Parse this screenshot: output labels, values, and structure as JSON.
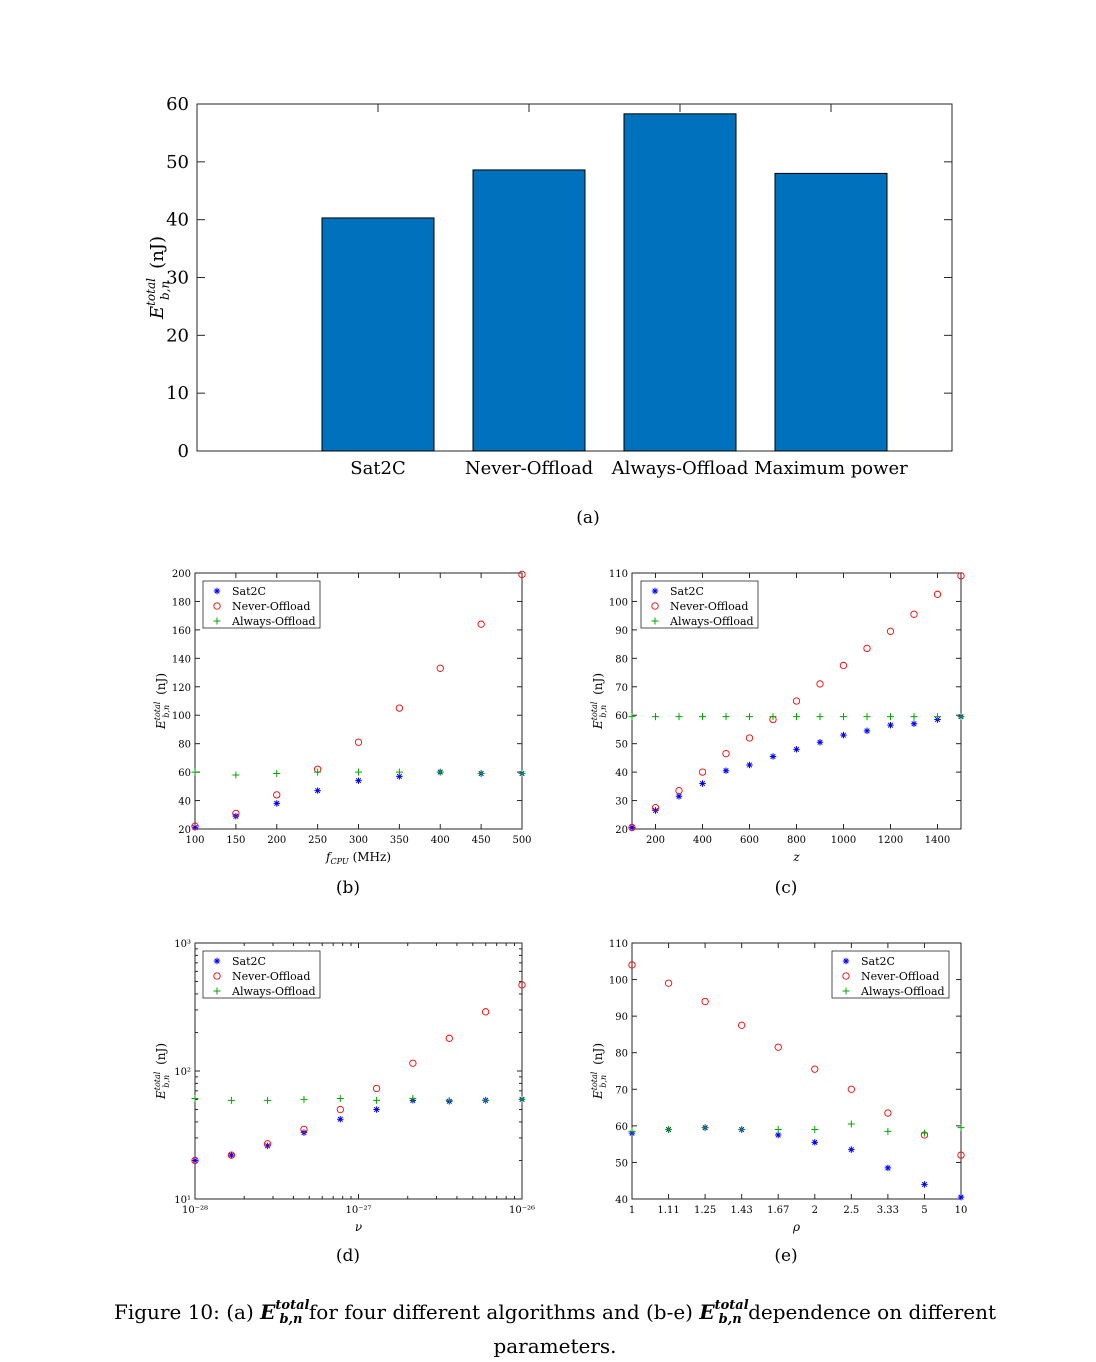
{
  "chart_data": [
    {
      "id": "a",
      "type": "bar",
      "categories": [
        "Sat2C",
        "Never-Offload",
        "Always-Offload",
        "Maximum power"
      ],
      "values": [
        40.3,
        48.6,
        58.3,
        48.0
      ],
      "ylabel_main": "E",
      "ylabel_sub": "b,n",
      "ylabel_sup": "total",
      "ylabel_unit": "(nJ)",
      "ylim": [
        0,
        60
      ],
      "yticks": [
        0,
        10,
        20,
        30,
        40,
        50,
        60
      ],
      "color": "#0072BD",
      "sublabel": "(a)"
    },
    {
      "id": "b",
      "type": "scatter",
      "xlabel_main": "f",
      "xlabel_sub": "CPU",
      "xlabel_unit": "(MHz)",
      "ylabel_main": "E",
      "ylabel_sub": "b,n",
      "ylabel_sup": "total",
      "ylabel_unit": "(nJ)",
      "xscale": "linear",
      "yscale": "linear",
      "xlim": [
        100,
        500
      ],
      "ylim": [
        20,
        200
      ],
      "xticks": [
        100,
        150,
        200,
        250,
        300,
        350,
        400,
        450,
        500
      ],
      "xticklabels": [
        "100",
        "150",
        "200",
        "250",
        "300",
        "350",
        "400",
        "450",
        "500"
      ],
      "yticks": [
        20,
        40,
        60,
        80,
        100,
        120,
        140,
        160,
        180,
        200
      ],
      "yticklabels": [
        "20",
        "40",
        "60",
        "80",
        "100",
        "120",
        "140",
        "160",
        "180",
        "200"
      ],
      "x": [
        100,
        150,
        200,
        250,
        300,
        350,
        400,
        450,
        500
      ],
      "series": [
        {
          "name": "Sat2C",
          "marker": "star",
          "color": "#0000FF",
          "values": [
            21,
            29,
            38,
            47,
            54,
            57,
            60,
            59,
            59
          ]
        },
        {
          "name": "Never-Offload",
          "marker": "circle",
          "color": "#FF0000",
          "values": [
            22,
            31,
            44,
            62,
            81,
            105,
            133,
            164,
            199
          ]
        },
        {
          "name": "Always-Offload",
          "marker": "plus",
          "color": "#00AA00",
          "values": [
            60,
            58,
            59,
            60,
            60,
            60,
            60,
            59,
            59
          ]
        }
      ],
      "legend_position": "top-left",
      "sublabel": "(b)"
    },
    {
      "id": "c",
      "type": "scatter",
      "xlabel_main": "z",
      "ylabel_main": "E",
      "ylabel_sub": "b,n",
      "ylabel_sup": "total",
      "ylabel_unit": "(nJ)",
      "xscale": "linear",
      "yscale": "linear",
      "xlim": [
        100,
        1500
      ],
      "ylim": [
        20,
        110
      ],
      "xticks": [
        200,
        400,
        600,
        800,
        1000,
        1200,
        1400
      ],
      "xticklabels": [
        "200",
        "400",
        "600",
        "800",
        "1000",
        "1200",
        "1400"
      ],
      "yticks": [
        20,
        30,
        40,
        50,
        60,
        70,
        80,
        90,
        100,
        110
      ],
      "yticklabels": [
        "20",
        "30",
        "40",
        "50",
        "60",
        "70",
        "80",
        "90",
        "100",
        "110"
      ],
      "x": [
        100,
        200,
        300,
        400,
        500,
        600,
        700,
        800,
        900,
        1000,
        1100,
        1200,
        1300,
        1400,
        1500
      ],
      "series": [
        {
          "name": "Sat2C",
          "marker": "star",
          "color": "#0000FF",
          "values": [
            20.5,
            26.5,
            31.5,
            36,
            40.5,
            42.5,
            45.5,
            48,
            50.5,
            53,
            54.5,
            56.5,
            57,
            58.5,
            59.5
          ]
        },
        {
          "name": "Never-Offload",
          "marker": "circle",
          "color": "#FF0000",
          "values": [
            20.5,
            27.5,
            33.5,
            40,
            46.5,
            52,
            58.5,
            65,
            71,
            77.5,
            83.5,
            89.5,
            95.5,
            102.5,
            109
          ]
        },
        {
          "name": "Always-Offload",
          "marker": "plus",
          "color": "#00AA00",
          "values": [
            59.5,
            59.5,
            59.5,
            59.5,
            59.5,
            59.5,
            59.5,
            59.5,
            59.5,
            59.5,
            59.5,
            59.5,
            59.5,
            59.5,
            59.5
          ]
        }
      ],
      "legend_position": "top-left",
      "sublabel": "(c)"
    },
    {
      "id": "d",
      "type": "scatter",
      "xlabel_main": "ν",
      "ylabel_main": "E",
      "ylabel_sub": "b,n",
      "ylabel_sup": "total",
      "ylabel_unit": "(nJ)",
      "xscale": "log",
      "yscale": "log",
      "xlim": [
        1e-28,
        1e-26
      ],
      "ylim": [
        10,
        1000
      ],
      "xticks": [
        1e-28,
        1e-27,
        1e-26
      ],
      "xticklabels": [
        "10⁻²⁸",
        "10⁻²⁷",
        "10⁻²⁶"
      ],
      "yticks": [
        10,
        100,
        1000
      ],
      "yticklabels": [
        "10¹",
        "10²",
        "10³"
      ],
      "x": [
        1e-28,
        1.67e-28,
        2.78e-28,
        4.64e-28,
        7.74e-28,
        1.29e-27,
        2.15e-27,
        3.59e-27,
        5.99e-27,
        1e-26
      ],
      "series": [
        {
          "name": "Sat2C",
          "marker": "star",
          "color": "#0000FF",
          "values": [
            20,
            22,
            26,
            33,
            42,
            50,
            59,
            58,
            59,
            60
          ]
        },
        {
          "name": "Never-Offload",
          "marker": "circle",
          "color": "#FF0000",
          "values": [
            20,
            22,
            27,
            35,
            50,
            73,
            115,
            180,
            290,
            470
          ]
        },
        {
          "name": "Always-Offload",
          "marker": "plus",
          "color": "#00AA00",
          "values": [
            61,
            59,
            59,
            60,
            61,
            59,
            61,
            59,
            59,
            60
          ]
        }
      ],
      "legend_position": "top-left",
      "sublabel": "(d)"
    },
    {
      "id": "e",
      "type": "scatter",
      "xlabel_main": "ρ",
      "ylabel_main": "E",
      "ylabel_sub": "b,n",
      "ylabel_sup": "total",
      "ylabel_unit": "(nJ)",
      "xscale": "index",
      "yscale": "linear",
      "xlim": [
        0,
        9
      ],
      "ylim": [
        40,
        110
      ],
      "xticks": [
        0,
        1,
        2,
        3,
        4,
        5,
        6,
        7,
        8,
        9
      ],
      "xticklabels": [
        "1",
        "1.11",
        "1.25",
        "1.43",
        "1.67",
        "2",
        "2.5",
        "3.33",
        "5",
        "10"
      ],
      "yticks": [
        40,
        50,
        60,
        70,
        80,
        90,
        100,
        110
      ],
      "yticklabels": [
        "40",
        "50",
        "60",
        "70",
        "80",
        "90",
        "100",
        "110"
      ],
      "x": [
        0,
        1,
        2,
        3,
        4,
        5,
        6,
        7,
        8,
        9
      ],
      "series": [
        {
          "name": "Sat2C",
          "marker": "star",
          "color": "#0000FF",
          "values": [
            58,
            59,
            59.5,
            59,
            57.5,
            55.5,
            53.5,
            48.5,
            44,
            40.5
          ]
        },
        {
          "name": "Never-Offload",
          "marker": "circle",
          "color": "#FF0000",
          "values": [
            104,
            99,
            94,
            87.5,
            81.5,
            75.5,
            70,
            63.5,
            57.5,
            52
          ]
        },
        {
          "name": "Always-Offload",
          "marker": "plus",
          "color": "#00AA00",
          "values": [
            58.5,
            59,
            59.5,
            59,
            59,
            59,
            60.5,
            58.5,
            58,
            59.5
          ]
        }
      ],
      "legend_position": "top-right",
      "sublabel": "(e)"
    }
  ],
  "caption": {
    "prefix": "Figure 10: (a)",
    "e_main": "E",
    "e_sub": "b,n",
    "e_sup": "total",
    "middle": "for four different algorithms and (b-e)",
    "suffix": "dependence on different",
    "line2": "parameters."
  }
}
